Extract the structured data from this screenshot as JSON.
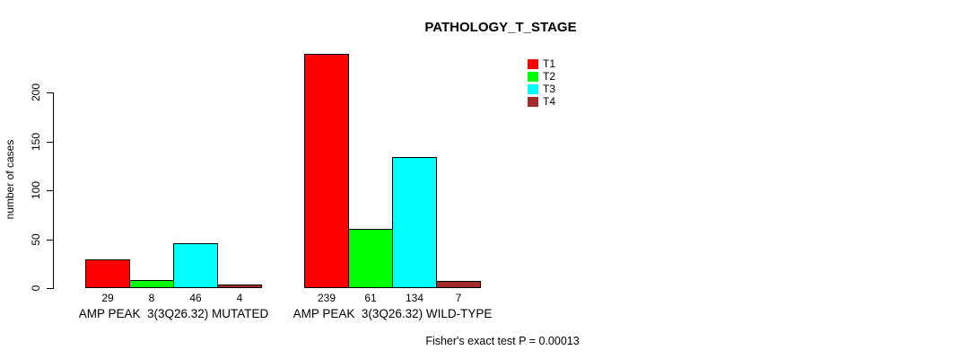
{
  "page": {
    "background": "#FFFFFF"
  },
  "chart_data": {
    "type": "bar",
    "title": "PATHOLOGY_T_STAGE",
    "ylabel": "number of cases",
    "xlabel": "",
    "ylim": [
      0,
      245
    ],
    "yticks": [
      0,
      50,
      100,
      150,
      200
    ],
    "grid": false,
    "legend_position": "top-right",
    "categories": [
      "AMP PEAK  3(3Q26.32) MUTATED",
      "AMP PEAK  3(3Q26.32) WILD-TYPE"
    ],
    "series": [
      {
        "name": "T1",
        "color": "#FF0000",
        "values": [
          29,
          239
        ]
      },
      {
        "name": "T2",
        "color": "#00FF00",
        "values": [
          8,
          61
        ]
      },
      {
        "name": "T3",
        "color": "#00FFFF",
        "values": [
          46,
          134
        ]
      },
      {
        "name": "T4",
        "color": "#A52A2A",
        "values": [
          4,
          7
        ]
      }
    ],
    "bar_value_labels_shown": true,
    "annotation": "Fisher's exact test P = 0.00013"
  }
}
